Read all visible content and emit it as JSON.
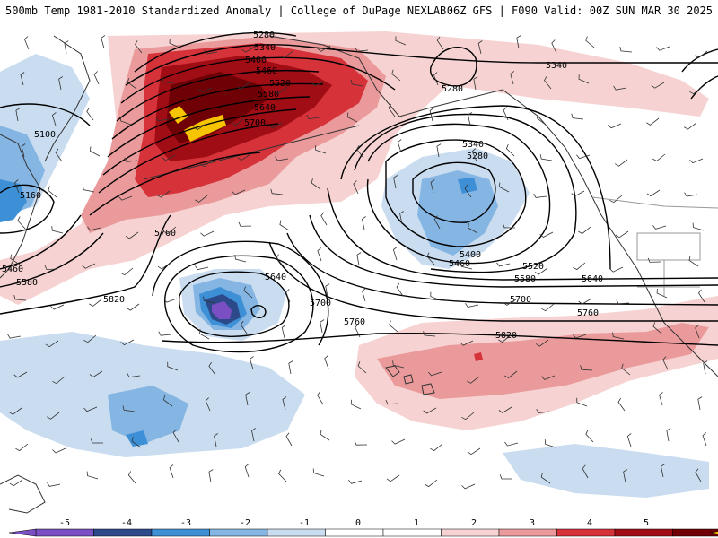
{
  "header": {
    "left_title": "500mb Temp 1981-2010 Standardized Anomaly | College of DuPage NEXLAB",
    "right_title": "06Z GFS | F090 Valid: 00Z SUN MAR 30 2025"
  },
  "contour_labels": [
    "5280",
    "5340",
    "5400",
    "5460",
    "5520",
    "5580",
    "5640",
    "5700",
    "5100",
    "5160",
    "5760",
    "5820"
  ],
  "colorbar": {
    "ticks": [
      "-5",
      "-4",
      "-3",
      "-2",
      "-1",
      "0",
      "1",
      "2",
      "3",
      "4",
      "5"
    ],
    "colors": {
      "neg5": "#7b4fc4",
      "neg4": "#2c4a8a",
      "neg3": "#3d8fd6",
      "neg2": "#85b5e2",
      "neg1": "#c9dcf0",
      "zero": "#ffffff",
      "pos1": "#f6d2d2",
      "pos2": "#ea9a9a",
      "pos3": "#d6323a",
      "pos4": "#a10d15",
      "pos5": "#6f0006",
      "max": "#f6c400"
    }
  },
  "map_colors": {
    "coast": "#333333",
    "border": "#999999",
    "contour": "#000000",
    "barb": "#333333"
  }
}
